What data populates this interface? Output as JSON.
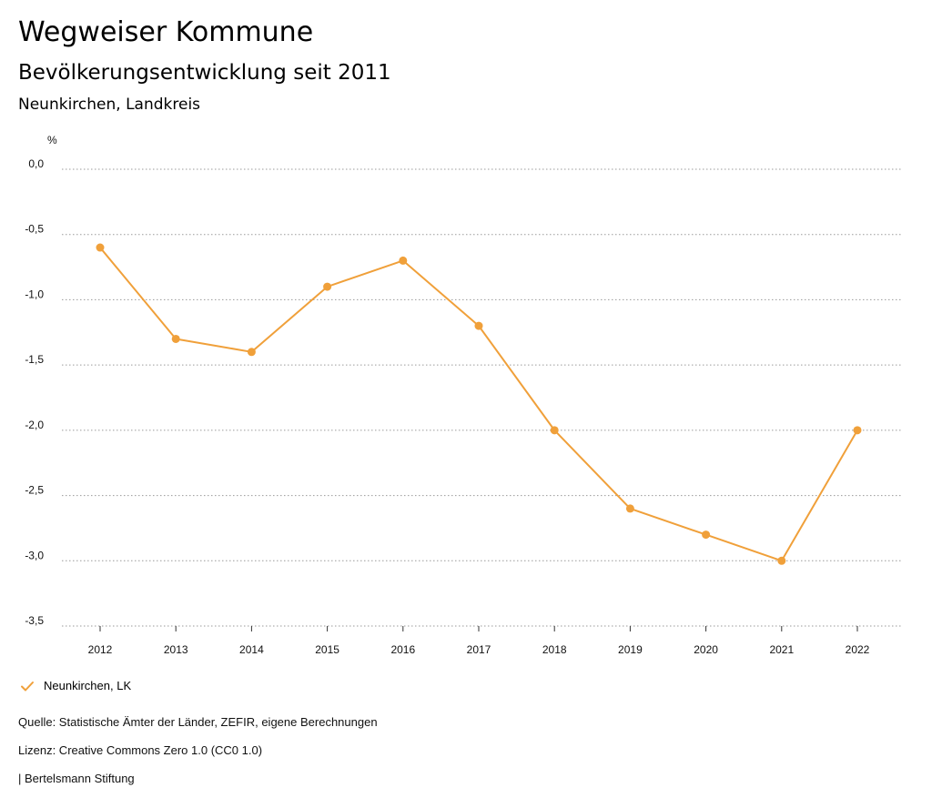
{
  "header": {
    "title": "Wegweiser Kommune",
    "subtitle": "Bevölkerungsentwicklung seit 2011",
    "region": "Neunkirchen, Landkreis"
  },
  "colors": {
    "series": "#F0A03A",
    "grid": "#9a9a9a",
    "axis": "#333333"
  },
  "chart_data": {
    "type": "line",
    "title": "Bevölkerungsentwicklung seit 2011",
    "xlabel": "",
    "ylabel": "%",
    "x": [
      "2012",
      "2013",
      "2014",
      "2015",
      "2016",
      "2017",
      "2018",
      "2019",
      "2020",
      "2021",
      "2022"
    ],
    "series": [
      {
        "name": "Neunkirchen, LK",
        "values": [
          -0.6,
          -1.3,
          -1.4,
          -0.9,
          -0.7,
          -1.2,
          -2.0,
          -2.6,
          -2.8,
          -3.0,
          -2.0
        ]
      }
    ],
    "ylim": [
      -3.5,
      0.0
    ],
    "yticks": [
      0.0,
      -0.5,
      -1.0,
      -1.5,
      -2.0,
      -2.5,
      -3.0,
      -3.5
    ],
    "ytick_labels": [
      "0,0",
      "-0,5",
      "-1,0",
      "-1,5",
      "-2,0",
      "-2,5",
      "-3,0",
      "-3,5"
    ],
    "grid": true,
    "legend_position": "bottom-left"
  },
  "legend": {
    "label": "Neunkirchen, LK"
  },
  "footer": {
    "source": "Quelle: Statistische Ämter der Länder, ZEFIR, eigene Berechnungen",
    "license": "Lizenz: Creative Commons Zero 1.0 (CC0 1.0)",
    "publisher": "| Bertelsmann Stiftung"
  }
}
